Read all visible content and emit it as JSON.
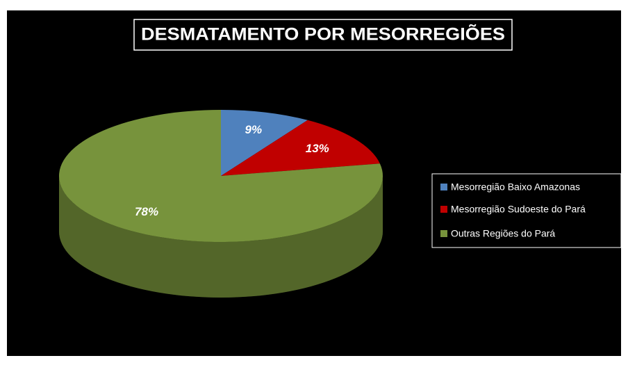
{
  "chart_data": {
    "type": "pie",
    "title": "DESMATAMENTO POR MESORREGIÕES",
    "categories": [
      "Mesorregião Baixo Amazonas",
      "Mesorregião Sudoeste do Pará",
      "Outras Regiões do Pará"
    ],
    "values": [
      9,
      13,
      78
    ],
    "value_labels": [
      "9%",
      "13%",
      "78%"
    ],
    "colors": [
      "#4f81bd",
      "#c00000",
      "#77933c"
    ],
    "legend": "right"
  }
}
